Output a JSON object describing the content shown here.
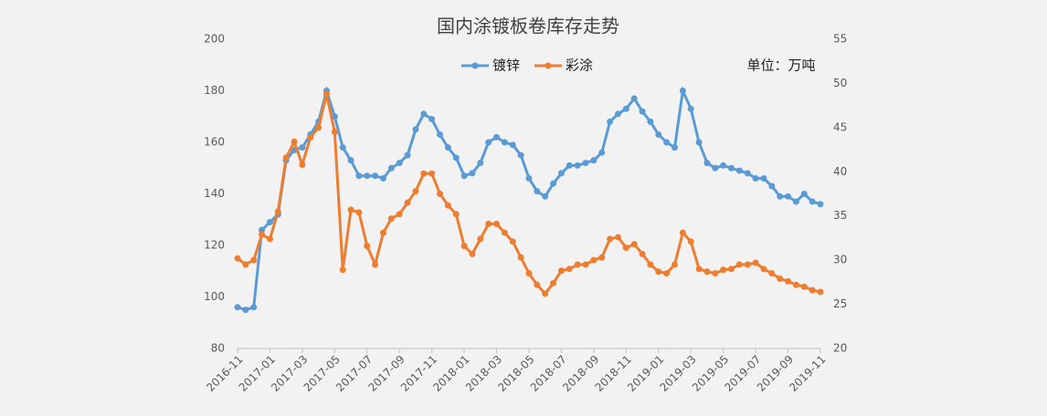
{
  "chart_data": {
    "type": "line",
    "title": "国内涂镀板卷库存走势",
    "annotation": "单位：万吨",
    "categories": [
      "2016-11",
      null,
      null,
      null,
      "2017-01",
      null,
      null,
      null,
      "2017-03",
      null,
      null,
      null,
      "2017-05",
      null,
      null,
      null,
      "2017-07",
      null,
      null,
      null,
      "2017-09",
      null,
      null,
      null,
      "2017-11",
      null,
      null,
      null,
      "2018-01",
      null,
      null,
      null,
      "2018-03",
      null,
      null,
      null,
      "2018-05",
      null,
      null,
      null,
      "2018-07",
      null,
      null,
      null,
      "2018-09",
      null,
      null,
      null,
      "2018-11",
      null,
      null,
      null,
      "2019-01",
      null,
      null,
      null,
      "2019-03",
      null,
      null,
      null,
      "2019-05",
      null,
      null,
      null,
      "2019-07",
      null,
      null,
      null,
      "2019-09",
      null,
      null,
      null,
      "2019-11"
    ],
    "series": [
      {
        "name": "镀锌",
        "color": "#5b9bd5",
        "axis": "y",
        "values": [
          96,
          95,
          96,
          126,
          129,
          132,
          153,
          157,
          158,
          163,
          168,
          180,
          170,
          158,
          153,
          147,
          147,
          147,
          146,
          150,
          152,
          155,
          165,
          171,
          169,
          163,
          158,
          154,
          147,
          148,
          152,
          160,
          162,
          160,
          159,
          155,
          146,
          141,
          139,
          144,
          148,
          151,
          151,
          152,
          153,
          156,
          168,
          171,
          173,
          177,
          172,
          168,
          163,
          160,
          158,
          180,
          173,
          160,
          152,
          150,
          151,
          150,
          149,
          148,
          146,
          146,
          143,
          139,
          139,
          137,
          140,
          137,
          136
        ]
      },
      {
        "name": "彩涂",
        "color": "#ed7d31",
        "axis": "y2",
        "values": [
          30.2,
          29.5,
          30,
          32.9,
          32.4,
          35.5,
          41.6,
          43.4,
          40.8,
          43.9,
          45,
          48.8,
          44.5,
          28.9,
          35.7,
          35.4,
          31.6,
          29.5,
          33.1,
          34.7,
          35.2,
          36.5,
          37.8,
          39.8,
          39.8,
          37.5,
          36.2,
          35.2,
          31.6,
          30.7,
          32.4,
          34.1,
          34.1,
          33.1,
          32.1,
          30.3,
          28.5,
          27.2,
          26.2,
          27.4,
          28.8,
          29,
          29.5,
          29.5,
          30,
          30.3,
          32.4,
          32.6,
          31.4,
          31.8,
          30.7,
          29.5,
          28.7,
          28.5,
          29.5,
          33.1,
          32.1,
          29,
          28.7,
          28.5,
          28.9,
          29,
          29.5,
          29.5,
          29.7,
          29,
          28.5,
          27.9,
          27.6,
          27.2,
          27,
          26.6,
          26.4
        ]
      }
    ],
    "ylim": [
      80,
      200
    ],
    "yticks": [
      80,
      100,
      120,
      140,
      160,
      180,
      200
    ],
    "y2lim": [
      20,
      55
    ],
    "y2ticks": [
      20,
      25,
      30,
      35,
      40,
      45,
      50,
      55
    ],
    "legend": "top"
  }
}
